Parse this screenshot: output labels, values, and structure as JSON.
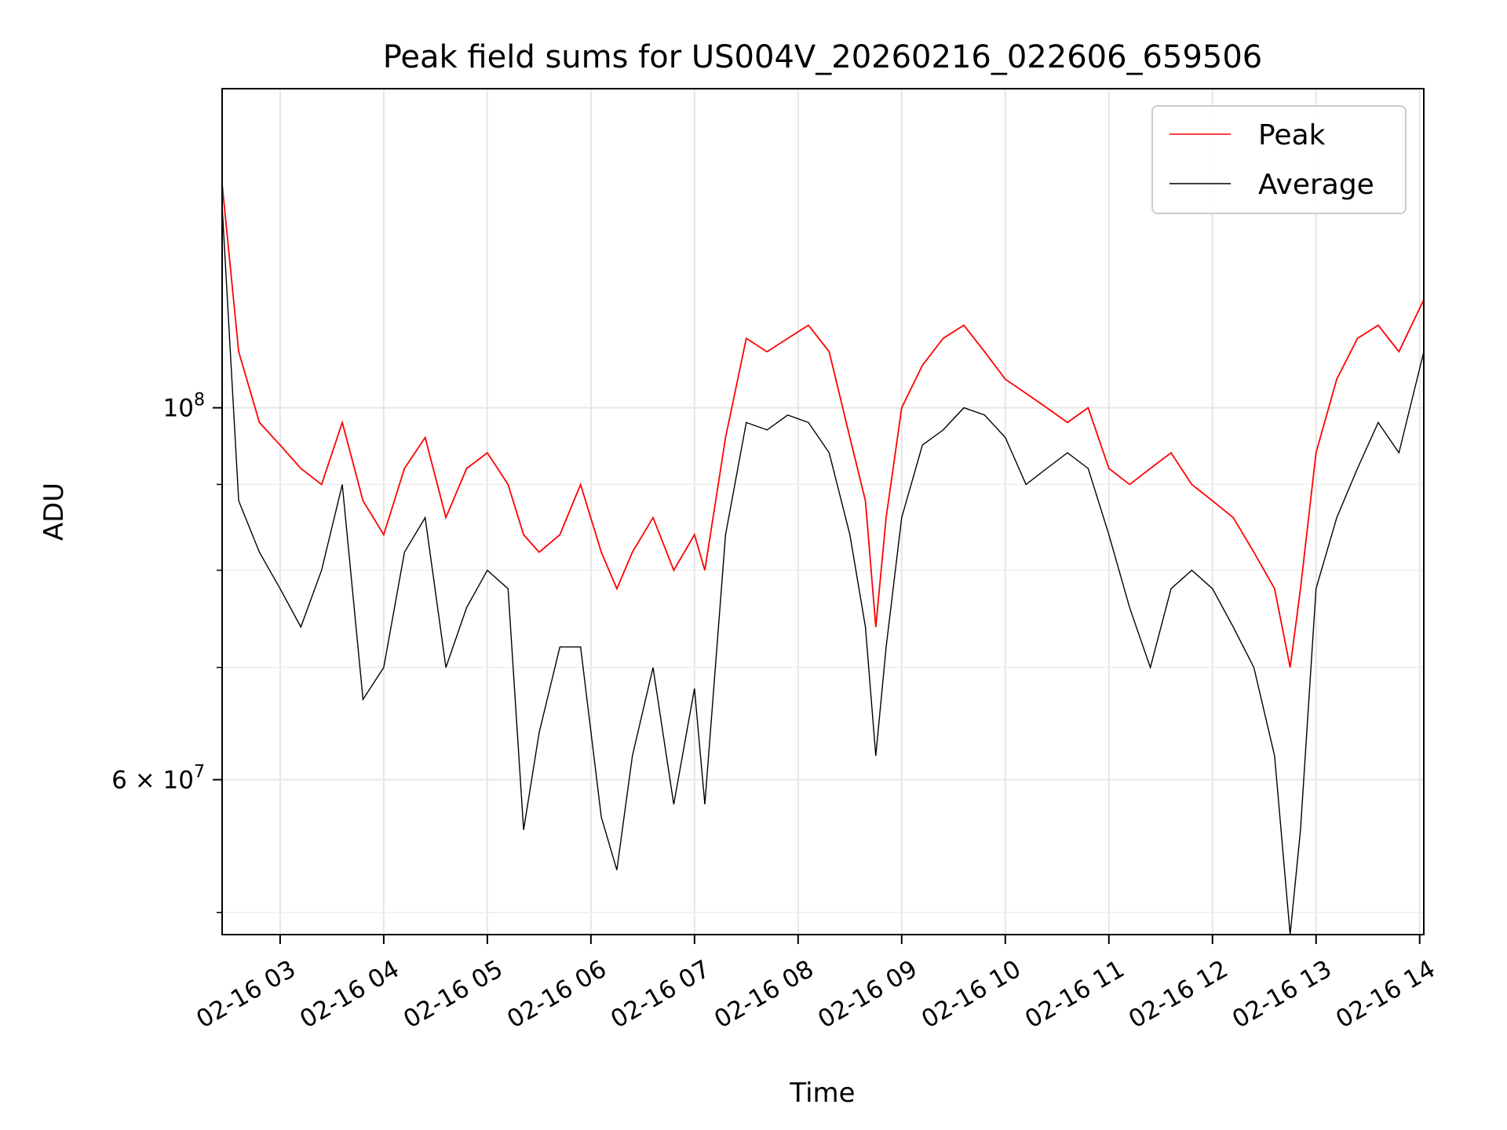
{
  "chart_data": {
    "type": "line",
    "title": "Peak field sums for US004V_20260216_022606_659506",
    "xlabel": "Time",
    "ylabel": "ADU",
    "yscale": "log",
    "ylim": [
      48500000,
      155000000
    ],
    "xlim_hours": [
      2.44,
      14.04
    ],
    "grid": true,
    "legend_position": "upper right",
    "x_ticks": [
      {
        "label": "02-16 03",
        "hour": 3
      },
      {
        "label": "02-16 04",
        "hour": 4
      },
      {
        "label": "02-16 05",
        "hour": 5
      },
      {
        "label": "02-16 06",
        "hour": 6
      },
      {
        "label": "02-16 07",
        "hour": 7
      },
      {
        "label": "02-16 08",
        "hour": 8
      },
      {
        "label": "02-16 09",
        "hour": 9
      },
      {
        "label": "02-16 10",
        "hour": 10
      },
      {
        "label": "02-16 11",
        "hour": 11
      },
      {
        "label": "02-16 12",
        "hour": 12
      },
      {
        "label": "02-16 13",
        "hour": 13
      },
      {
        "label": "02-16 14",
        "hour": 14
      }
    ],
    "y_ticks": [
      {
        "base": "10",
        "exp": "8",
        "value": 100000000
      },
      {
        "base": "6 × 10",
        "exp": "7",
        "value": 60000000
      }
    ],
    "y_minor_ticks": [
      50000000,
      70000000,
      80000000,
      90000000,
      200000000
    ],
    "series": [
      {
        "name": "Peak",
        "color": "#ff0000",
        "x_hours": [
          2.44,
          2.6,
          2.8,
          3.0,
          3.2,
          3.4,
          3.6,
          3.8,
          4.0,
          4.2,
          4.4,
          4.6,
          4.8,
          5.0,
          5.2,
          5.35,
          5.5,
          5.7,
          5.9,
          6.1,
          6.25,
          6.4,
          6.6,
          6.8,
          7.0,
          7.1,
          7.3,
          7.5,
          7.7,
          7.9,
          8.1,
          8.3,
          8.5,
          8.65,
          8.75,
          8.85,
          9.0,
          9.2,
          9.4,
          9.6,
          9.8,
          10.0,
          10.2,
          10.4,
          10.6,
          10.8,
          11.0,
          11.2,
          11.4,
          11.6,
          11.8,
          12.0,
          12.2,
          12.4,
          12.6,
          12.75,
          12.85,
          13.0,
          13.2,
          13.4,
          13.6,
          13.8,
          14.04
        ],
        "values": [
          136000000,
          108000000,
          98000000,
          95000000,
          92000000,
          90000000,
          98000000,
          88000000,
          84000000,
          92000000,
          96000000,
          86000000,
          92000000,
          94000000,
          90000000,
          84000000,
          82000000,
          84000000,
          90000000,
          82000000,
          78000000,
          82000000,
          86000000,
          80000000,
          84000000,
          80000000,
          96000000,
          110000000,
          108000000,
          110000000,
          112000000,
          108000000,
          96000000,
          88000000,
          74000000,
          86000000,
          100000000,
          106000000,
          110000000,
          112000000,
          108000000,
          104000000,
          102000000,
          100000000,
          98000000,
          100000000,
          92000000,
          90000000,
          92000000,
          94000000,
          90000000,
          88000000,
          86000000,
          82000000,
          78000000,
          70000000,
          78000000,
          94000000,
          104000000,
          110000000,
          112000000,
          108000000,
          116000000
        ]
      },
      {
        "name": "Average",
        "color": "#000000",
        "x_hours": [
          2.44,
          2.6,
          2.8,
          3.0,
          3.2,
          3.4,
          3.6,
          3.8,
          4.0,
          4.2,
          4.4,
          4.6,
          4.8,
          5.0,
          5.2,
          5.35,
          5.5,
          5.7,
          5.9,
          6.1,
          6.25,
          6.4,
          6.6,
          6.8,
          7.0,
          7.1,
          7.3,
          7.5,
          7.7,
          7.9,
          8.1,
          8.3,
          8.5,
          8.65,
          8.75,
          8.85,
          9.0,
          9.2,
          9.4,
          9.6,
          9.8,
          10.0,
          10.2,
          10.4,
          10.6,
          10.8,
          11.0,
          11.2,
          11.4,
          11.6,
          11.8,
          12.0,
          12.2,
          12.4,
          12.6,
          12.75,
          12.85,
          13.0,
          13.2,
          13.4,
          13.6,
          13.8,
          14.04
        ],
        "values": [
          132000000,
          88000000,
          82000000,
          78000000,
          74000000,
          80000000,
          90000000,
          67000000,
          70000000,
          82000000,
          86000000,
          70000000,
          76000000,
          80000000,
          78000000,
          56000000,
          64000000,
          72000000,
          72000000,
          57000000,
          53000000,
          62000000,
          70000000,
          58000000,
          68000000,
          58000000,
          84000000,
          98000000,
          97000000,
          99000000,
          98000000,
          94000000,
          84000000,
          74000000,
          62000000,
          72000000,
          86000000,
          95000000,
          97000000,
          100000000,
          99000000,
          96000000,
          90000000,
          92000000,
          94000000,
          92000000,
          84000000,
          76000000,
          70000000,
          78000000,
          80000000,
          78000000,
          74000000,
          70000000,
          62000000,
          48500000,
          56000000,
          78000000,
          86000000,
          92000000,
          98000000,
          94000000,
          108000000
        ]
      }
    ]
  }
}
